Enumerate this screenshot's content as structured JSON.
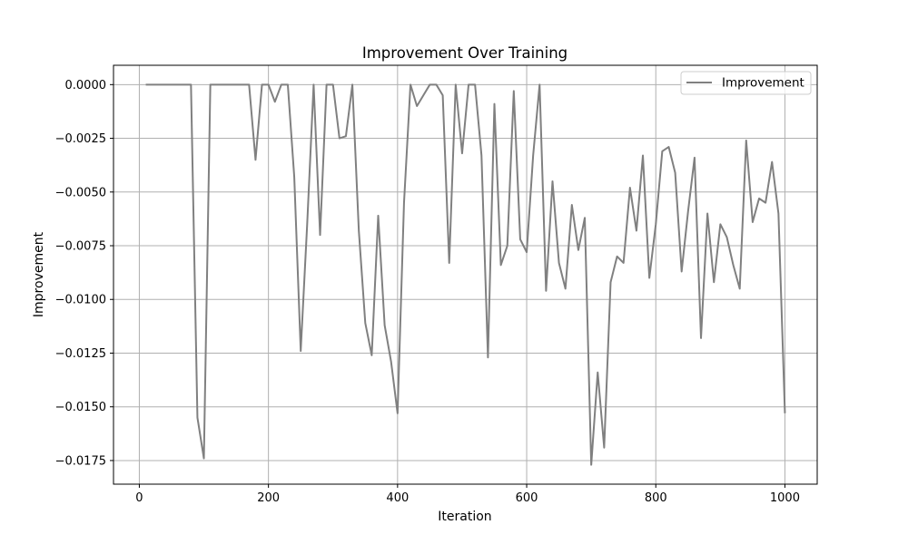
{
  "chart_data": {
    "type": "line",
    "title": "Improvement Over Training",
    "xlabel": "Iteration",
    "ylabel": "Improvement",
    "xlim": [
      -40,
      1050
    ],
    "ylim": [
      -0.0186,
      0.0009
    ],
    "xticks": [
      0,
      200,
      400,
      600,
      800,
      1000
    ],
    "xtick_labels": [
      "0",
      "200",
      "400",
      "600",
      "800",
      "1000"
    ],
    "yticks": [
      0.0,
      -0.0025,
      -0.005,
      -0.0075,
      -0.01,
      -0.0125,
      -0.015,
      -0.0175
    ],
    "ytick_labels": [
      "0.0000",
      "−0.0025",
      "−0.0050",
      "−0.0075",
      "−0.0100",
      "−0.0125",
      "−0.0150",
      "−0.0175"
    ],
    "grid": true,
    "legend_position": "upper right",
    "series": [
      {
        "name": "Improvement",
        "color": "#808080",
        "x": [
          10,
          20,
          30,
          40,
          50,
          60,
          70,
          80,
          90,
          100,
          110,
          120,
          130,
          140,
          150,
          160,
          170,
          180,
          190,
          200,
          210,
          220,
          230,
          240,
          250,
          260,
          270,
          280,
          290,
          300,
          310,
          320,
          330,
          340,
          350,
          360,
          370,
          380,
          390,
          400,
          410,
          420,
          430,
          440,
          450,
          460,
          470,
          480,
          490,
          500,
          510,
          520,
          530,
          540,
          550,
          560,
          570,
          580,
          590,
          600,
          610,
          620,
          630,
          640,
          650,
          660,
          670,
          680,
          690,
          700,
          710,
          720,
          730,
          740,
          750,
          760,
          770,
          780,
          790,
          800,
          810,
          820,
          830,
          840,
          850,
          860,
          870,
          880,
          890,
          900,
          910,
          920,
          930,
          940,
          950,
          960,
          970,
          980,
          990,
          1000
        ],
        "y": [
          0,
          0,
          0,
          0,
          0,
          0,
          0,
          0,
          -0.0155,
          -0.0174,
          0,
          0,
          0,
          0,
          0,
          0,
          0,
          -0.0035,
          0,
          0,
          -0.0008,
          0,
          0,
          -0.0043,
          -0.0124,
          -0.0065,
          0,
          -0.007,
          0,
          0,
          -0.0025,
          -0.0024,
          0,
          -0.0068,
          -0.0111,
          -0.0126,
          -0.0061,
          -0.0112,
          -0.0129,
          -0.0153,
          -0.0055,
          0,
          -0.001,
          -0.0005,
          0,
          0,
          -0.0005,
          -0.0083,
          0,
          -0.0032,
          0,
          0,
          -0.0033,
          -0.0127,
          -0.0009,
          -0.0084,
          -0.0075,
          -0.0003,
          -0.0072,
          -0.0078,
          -0.0033,
          0,
          -0.0096,
          -0.0045,
          -0.0083,
          -0.0095,
          -0.0056,
          -0.0077,
          -0.0062,
          -0.0177,
          -0.0134,
          -0.0169,
          -0.0092,
          -0.008,
          -0.0083,
          -0.0048,
          -0.0068,
          -0.0033,
          -0.009,
          -0.0065,
          -0.0031,
          -0.0029,
          -0.0041,
          -0.0087,
          -0.0059,
          -0.0034,
          -0.0118,
          -0.006,
          -0.0092,
          -0.0065,
          -0.0071,
          -0.0084,
          -0.0095,
          -0.0026,
          -0.0064,
          -0.0053,
          -0.0055,
          -0.0036,
          -0.006,
          -0.0153
        ]
      }
    ]
  }
}
